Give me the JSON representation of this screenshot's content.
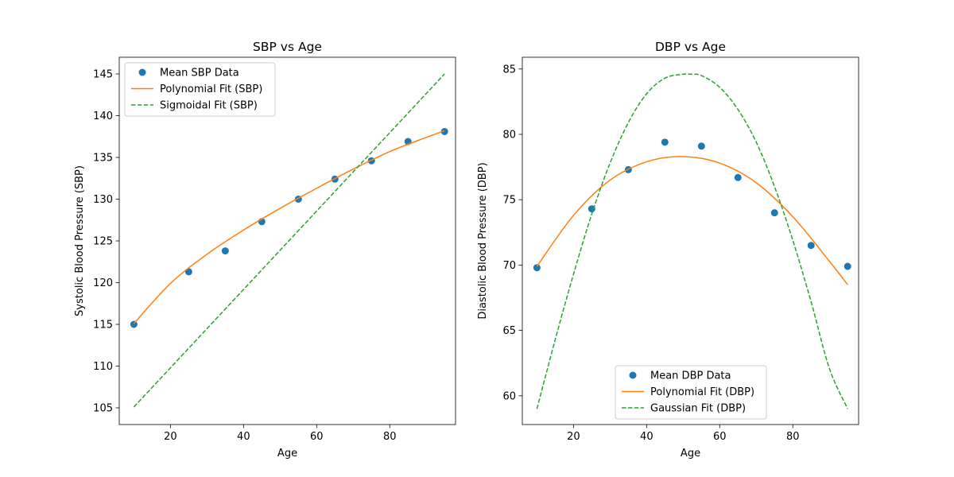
{
  "chart_data": [
    {
      "type": "scatter",
      "title": "SBP vs Age",
      "xlabel": "Age",
      "ylabel": "Systolic Blood Pressure (SBP)",
      "xlim": [
        6,
        98
      ],
      "ylim": [
        103,
        147
      ],
      "xticks": [
        20,
        40,
        60,
        80
      ],
      "yticks": [
        105,
        110,
        115,
        120,
        125,
        130,
        135,
        140,
        145
      ],
      "legend_position": "upper-left",
      "grid": false,
      "series": [
        {
          "name": "Mean SBP Data",
          "kind": "points",
          "color": "#1f77b4",
          "x": [
            10,
            25,
            35,
            45,
            55,
            65,
            75,
            85,
            95
          ],
          "y": [
            115.0,
            121.3,
            123.8,
            127.3,
            130.0,
            132.4,
            134.6,
            136.9,
            138.1
          ]
        },
        {
          "name": "Polynomial Fit (SBP)",
          "kind": "line",
          "style": "solid",
          "color": "#ff7f0e",
          "x": [
            10,
            20,
            30,
            40,
            50,
            60,
            70,
            80,
            90,
            95
          ],
          "y": [
            115.1,
            119.9,
            123.4,
            126.3,
            128.9,
            131.3,
            133.6,
            135.7,
            137.4,
            138.2
          ]
        },
        {
          "name": "Sigmoidal Fit (SBP)",
          "kind": "line",
          "style": "dashed",
          "color": "#2ca02c",
          "x": [
            10,
            95
          ],
          "y": [
            105.1,
            145.0
          ]
        }
      ]
    },
    {
      "type": "scatter",
      "title": "DBP vs Age",
      "xlabel": "Age",
      "ylabel": "Diastolic Blood Pressure (DBP)",
      "xlim": [
        6,
        98
      ],
      "ylim": [
        57.8,
        85.9
      ],
      "xticks": [
        20,
        40,
        60,
        80
      ],
      "yticks": [
        60,
        65,
        70,
        75,
        80,
        85
      ],
      "legend_position": "lower-center",
      "grid": false,
      "series": [
        {
          "name": "Mean DBP Data",
          "kind": "points",
          "color": "#1f77b4",
          "x": [
            10,
            25,
            35,
            45,
            55,
            65,
            75,
            85,
            95
          ],
          "y": [
            69.8,
            74.3,
            77.3,
            79.4,
            79.1,
            76.7,
            74.0,
            71.5,
            69.9
          ]
        },
        {
          "name": "Polynomial Fit (DBP)",
          "kind": "line",
          "style": "solid",
          "color": "#ff7f0e",
          "x": [
            10,
            20,
            30,
            40,
            50,
            60,
            70,
            80,
            90,
            95
          ],
          "y": [
            69.9,
            73.8,
            76.5,
            77.9,
            78.3,
            77.8,
            76.3,
            73.7,
            70.3,
            68.5
          ]
        },
        {
          "name": "Gaussian Fit (DBP)",
          "kind": "line",
          "style": "dashed",
          "color": "#2ca02c",
          "x": [
            10,
            15,
            20,
            25,
            30,
            35,
            40,
            45,
            50,
            52,
            55,
            60,
            65,
            70,
            75,
            80,
            85,
            90,
            95
          ],
          "y": [
            59.0,
            64.3,
            69.3,
            73.9,
            77.8,
            80.9,
            83.1,
            84.3,
            84.6,
            84.6,
            84.5,
            83.6,
            81.9,
            79.4,
            76.0,
            71.9,
            67.2,
            62.1,
            59.0
          ]
        }
      ]
    }
  ]
}
